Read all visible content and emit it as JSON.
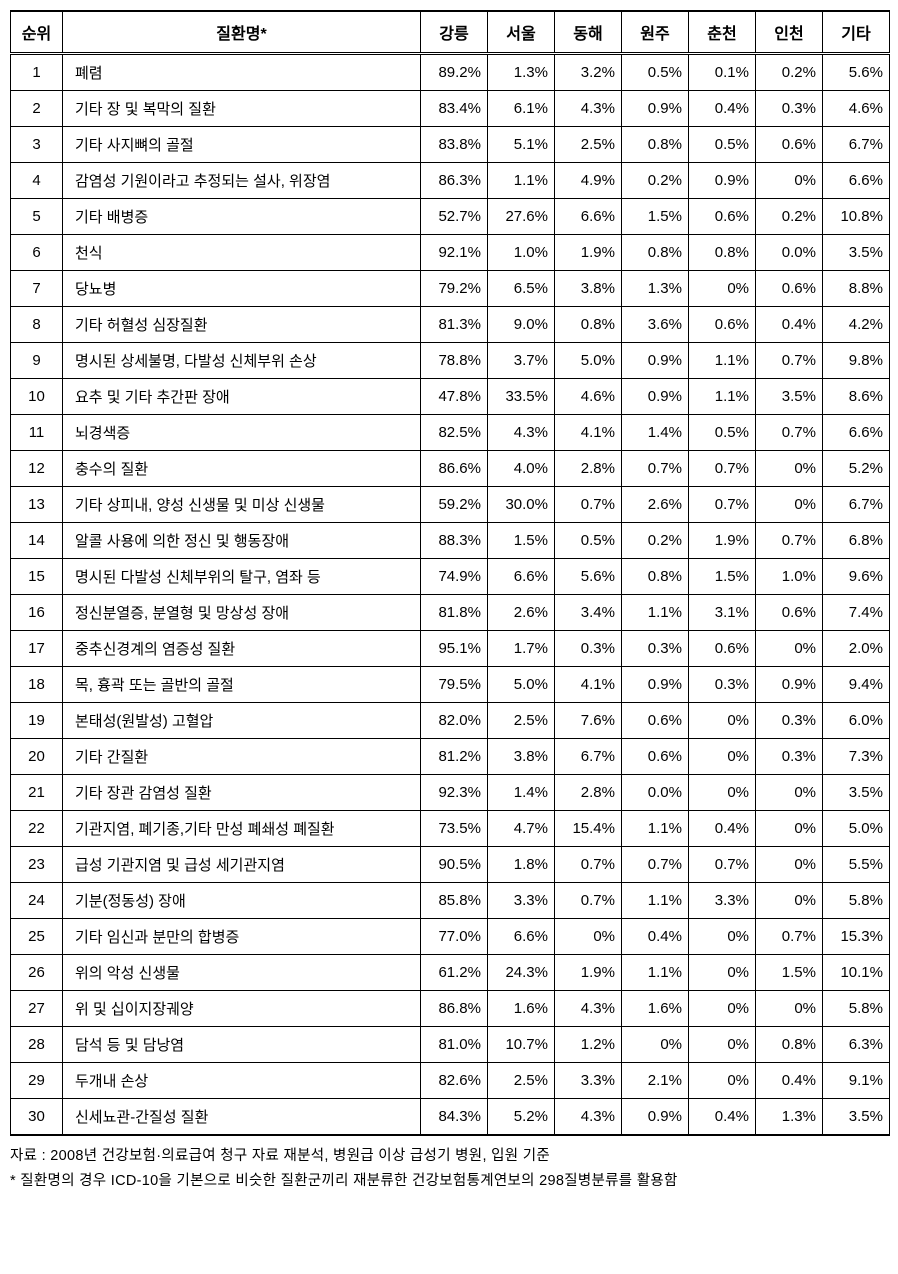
{
  "table": {
    "columns": [
      "순위",
      "질환명*",
      "강릉",
      "서울",
      "동해",
      "원주",
      "춘천",
      "인천",
      "기타"
    ],
    "col_types": [
      "rank",
      "name",
      "pct",
      "pct",
      "pct",
      "pct",
      "pct",
      "pct",
      "pct"
    ],
    "rows": [
      [
        "1",
        "폐렴",
        "89.2%",
        "1.3%",
        "3.2%",
        "0.5%",
        "0.1%",
        "0.2%",
        "5.6%"
      ],
      [
        "2",
        "기타 장 및 복막의 질환",
        "83.4%",
        "6.1%",
        "4.3%",
        "0.9%",
        "0.4%",
        "0.3%",
        "4.6%"
      ],
      [
        "3",
        "기타 사지뼈의 골절",
        "83.8%",
        "5.1%",
        "2.5%",
        "0.8%",
        "0.5%",
        "0.6%",
        "6.7%"
      ],
      [
        "4",
        "감염성 기원이라고 추정되는 설사, 위장염",
        "86.3%",
        "1.1%",
        "4.9%",
        "0.2%",
        "0.9%",
        "0%",
        "6.6%"
      ],
      [
        "5",
        "기타 배병증",
        "52.7%",
        "27.6%",
        "6.6%",
        "1.5%",
        "0.6%",
        "0.2%",
        "10.8%"
      ],
      [
        "6",
        "천식",
        "92.1%",
        "1.0%",
        "1.9%",
        "0.8%",
        "0.8%",
        "0.0%",
        "3.5%"
      ],
      [
        "7",
        "당뇨병",
        "79.2%",
        "6.5%",
        "3.8%",
        "1.3%",
        "0%",
        "0.6%",
        "8.8%"
      ],
      [
        "8",
        "기타 허혈성 심장질환",
        "81.3%",
        "9.0%",
        "0.8%",
        "3.6%",
        "0.6%",
        "0.4%",
        "4.2%"
      ],
      [
        "9",
        "명시된 상세불명, 다발성 신체부위 손상",
        "78.8%",
        "3.7%",
        "5.0%",
        "0.9%",
        "1.1%",
        "0.7%",
        "9.8%"
      ],
      [
        "10",
        "요추 및 기타 추간판 장애",
        "47.8%",
        "33.5%",
        "4.6%",
        "0.9%",
        "1.1%",
        "3.5%",
        "8.6%"
      ],
      [
        "11",
        "뇌경색증",
        "82.5%",
        "4.3%",
        "4.1%",
        "1.4%",
        "0.5%",
        "0.7%",
        "6.6%"
      ],
      [
        "12",
        "충수의 질환",
        "86.6%",
        "4.0%",
        "2.8%",
        "0.7%",
        "0.7%",
        "0%",
        "5.2%"
      ],
      [
        "13",
        "기타 상피내, 양성 신생물 및 미상 신생물",
        "59.2%",
        "30.0%",
        "0.7%",
        "2.6%",
        "0.7%",
        "0%",
        "6.7%"
      ],
      [
        "14",
        "알콜 사용에 의한 정신 및 행동장애",
        "88.3%",
        "1.5%",
        "0.5%",
        "0.2%",
        "1.9%",
        "0.7%",
        "6.8%"
      ],
      [
        "15",
        "명시된 다발성 신체부위의 탈구, 염좌 등",
        "74.9%",
        "6.6%",
        "5.6%",
        "0.8%",
        "1.5%",
        "1.0%",
        "9.6%"
      ],
      [
        "16",
        "정신분열증, 분열형 및 망상성 장애",
        "81.8%",
        "2.6%",
        "3.4%",
        "1.1%",
        "3.1%",
        "0.6%",
        "7.4%"
      ],
      [
        "17",
        "중추신경계의 염증성 질환",
        "95.1%",
        "1.7%",
        "0.3%",
        "0.3%",
        "0.6%",
        "0%",
        "2.0%"
      ],
      [
        "18",
        "목, 흉곽 또는 골반의 골절",
        "79.5%",
        "5.0%",
        "4.1%",
        "0.9%",
        "0.3%",
        "0.9%",
        "9.4%"
      ],
      [
        "19",
        "본태성(원발성) 고혈압",
        "82.0%",
        "2.5%",
        "7.6%",
        "0.6%",
        "0%",
        "0.3%",
        "6.0%"
      ],
      [
        "20",
        "기타 간질환",
        "81.2%",
        "3.8%",
        "6.7%",
        "0.6%",
        "0%",
        "0.3%",
        "7.3%"
      ],
      [
        "21",
        "기타 장관 감염성 질환",
        "92.3%",
        "1.4%",
        "2.8%",
        "0.0%",
        "0%",
        "0%",
        "3.5%"
      ],
      [
        "22",
        "기관지염, 폐기종,기타 만성 폐쇄성 폐질환",
        "73.5%",
        "4.7%",
        "15.4%",
        "1.1%",
        "0.4%",
        "0%",
        "5.0%"
      ],
      [
        "23",
        "급성 기관지염 및 급성 세기관지염",
        "90.5%",
        "1.8%",
        "0.7%",
        "0.7%",
        "0.7%",
        "0%",
        "5.5%"
      ],
      [
        "24",
        "기분(정동성) 장애",
        "85.8%",
        "3.3%",
        "0.7%",
        "1.1%",
        "3.3%",
        "0%",
        "5.8%"
      ],
      [
        "25",
        "기타 임신과 분만의 합병증",
        "77.0%",
        "6.6%",
        "0%",
        "0.4%",
        "0%",
        "0.7%",
        "15.3%"
      ],
      [
        "26",
        "위의 악성 신생물",
        "61.2%",
        "24.3%",
        "1.9%",
        "1.1%",
        "0%",
        "1.5%",
        "10.1%"
      ],
      [
        "27",
        "위 및 십이지장궤양",
        "86.8%",
        "1.6%",
        "4.3%",
        "1.6%",
        "0%",
        "0%",
        "5.8%"
      ],
      [
        "28",
        "담석 등 및 담낭염",
        "81.0%",
        "10.7%",
        "1.2%",
        "0%",
        "0%",
        "0.8%",
        "6.3%"
      ],
      [
        "29",
        "두개내 손상",
        "82.6%",
        "2.5%",
        "3.3%",
        "2.1%",
        "0%",
        "0.4%",
        "9.1%"
      ],
      [
        "30",
        "신세뇨관-간질성 질환",
        "84.3%",
        "5.2%",
        "4.3%",
        "0.9%",
        "0.4%",
        "1.3%",
        "3.5%"
      ]
    ]
  },
  "footnotes": [
    "자료 : 2008년 건강보험·의료급여 청구 자료 재분석, 병원급 이상 급성기 병원, 입원 기준",
    "* 질환명의 경우 ICD-10을 기본으로 비슷한 질환군끼리 재분류한 건강보험통계연보의 298질병분류를 활용함"
  ]
}
